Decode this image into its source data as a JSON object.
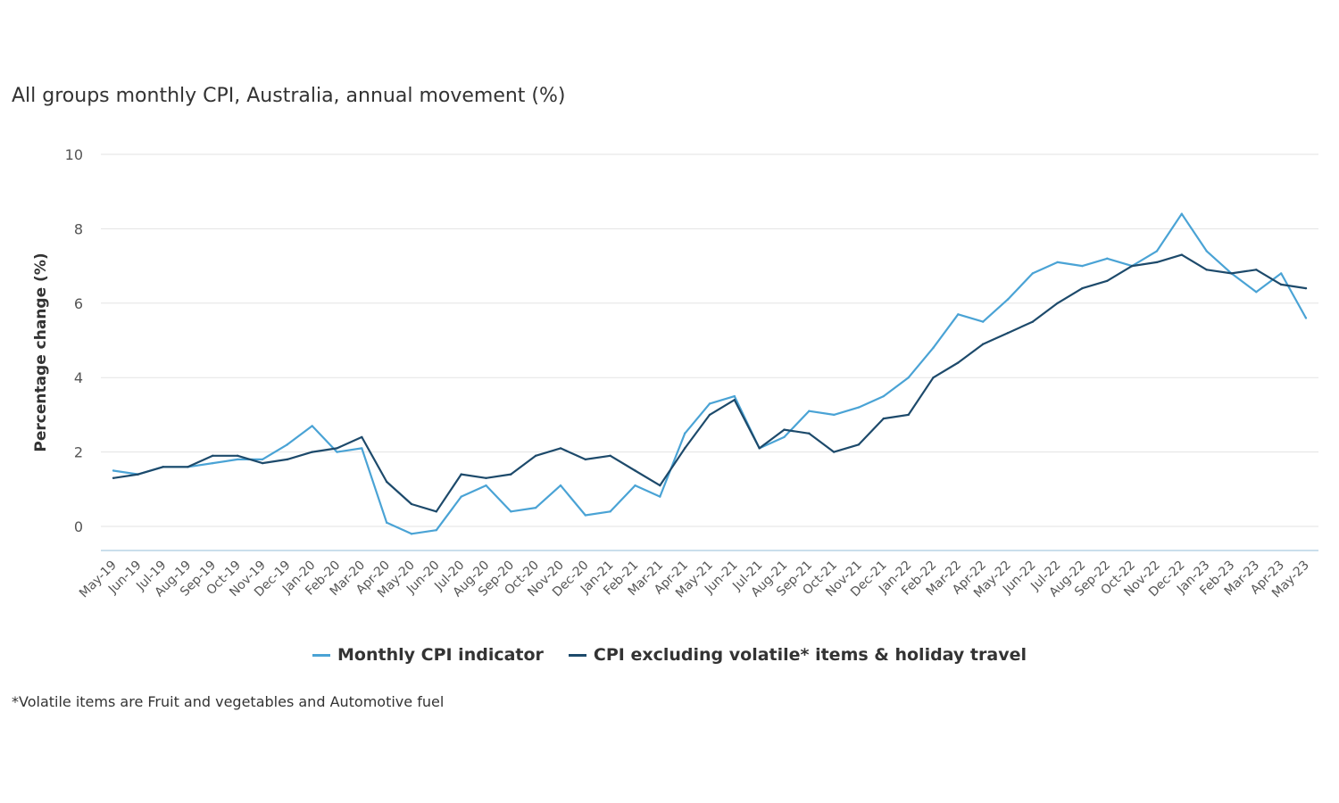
{
  "chart_data": {
    "type": "line",
    "title": "All groups monthly CPI, Australia, annual movement (%)",
    "xlabel": "",
    "ylabel": "Percentage change (%)",
    "ylim": [
      0,
      10
    ],
    "yticks": [
      0,
      2,
      4,
      6,
      8,
      10
    ],
    "grid": true,
    "legend_position": "bottom",
    "categories": [
      "May-19",
      "Jun-19",
      "Jul-19",
      "Aug-19",
      "Sep-19",
      "Oct-19",
      "Nov-19",
      "Dec-19",
      "Jan-20",
      "Feb-20",
      "Mar-20",
      "Apr-20",
      "May-20",
      "Jun-20",
      "Jul-20",
      "Aug-20",
      "Sep-20",
      "Oct-20",
      "Nov-20",
      "Dec-20",
      "Jan-21",
      "Feb-21",
      "Mar-21",
      "Apr-21",
      "May-21",
      "Jun-21",
      "Jul-21",
      "Aug-21",
      "Sep-21",
      "Oct-21",
      "Nov-21",
      "Dec-21",
      "Jan-22",
      "Feb-22",
      "Mar-22",
      "Apr-22",
      "May-22",
      "Jun-22",
      "Jul-22",
      "Aug-22",
      "Sep-22",
      "Oct-22",
      "Nov-22",
      "Dec-22",
      "Jan-23",
      "Feb-23",
      "Mar-23",
      "Apr-23",
      "May-23"
    ],
    "series": [
      {
        "name": "Monthly CPI indicator",
        "color": "#4aa3d5",
        "values": [
          1.5,
          1.4,
          1.6,
          1.6,
          1.7,
          1.8,
          1.8,
          2.2,
          2.7,
          2.0,
          2.1,
          0.1,
          -0.2,
          -0.1,
          0.8,
          1.1,
          0.4,
          0.5,
          1.1,
          0.3,
          0.4,
          1.1,
          0.8,
          2.5,
          3.3,
          3.5,
          2.1,
          2.4,
          3.1,
          3.0,
          3.2,
          3.5,
          4.0,
          4.8,
          5.7,
          5.5,
          6.1,
          6.8,
          7.1,
          7.0,
          7.2,
          7.0,
          7.4,
          8.4,
          7.4,
          6.8,
          6.3,
          6.8,
          5.6
        ]
      },
      {
        "name": "CPI excluding volatile* items & holiday travel",
        "color": "#1d4a6b",
        "values": [
          1.3,
          1.4,
          1.6,
          1.6,
          1.9,
          1.9,
          1.7,
          1.8,
          2.0,
          2.1,
          2.4,
          1.2,
          0.6,
          0.4,
          1.4,
          1.3,
          1.4,
          1.9,
          2.1,
          1.8,
          1.9,
          1.5,
          1.1,
          2.1,
          3.0,
          3.4,
          2.1,
          2.6,
          2.5,
          2.0,
          2.2,
          2.9,
          3.0,
          4.0,
          4.4,
          4.9,
          5.2,
          5.5,
          6.0,
          6.4,
          6.6,
          7.0,
          7.1,
          7.3,
          6.9,
          6.8,
          6.9,
          6.5,
          6.4
        ]
      }
    ],
    "footnote": "*Volatile items are Fruit and vegetables and Automotive fuel"
  }
}
